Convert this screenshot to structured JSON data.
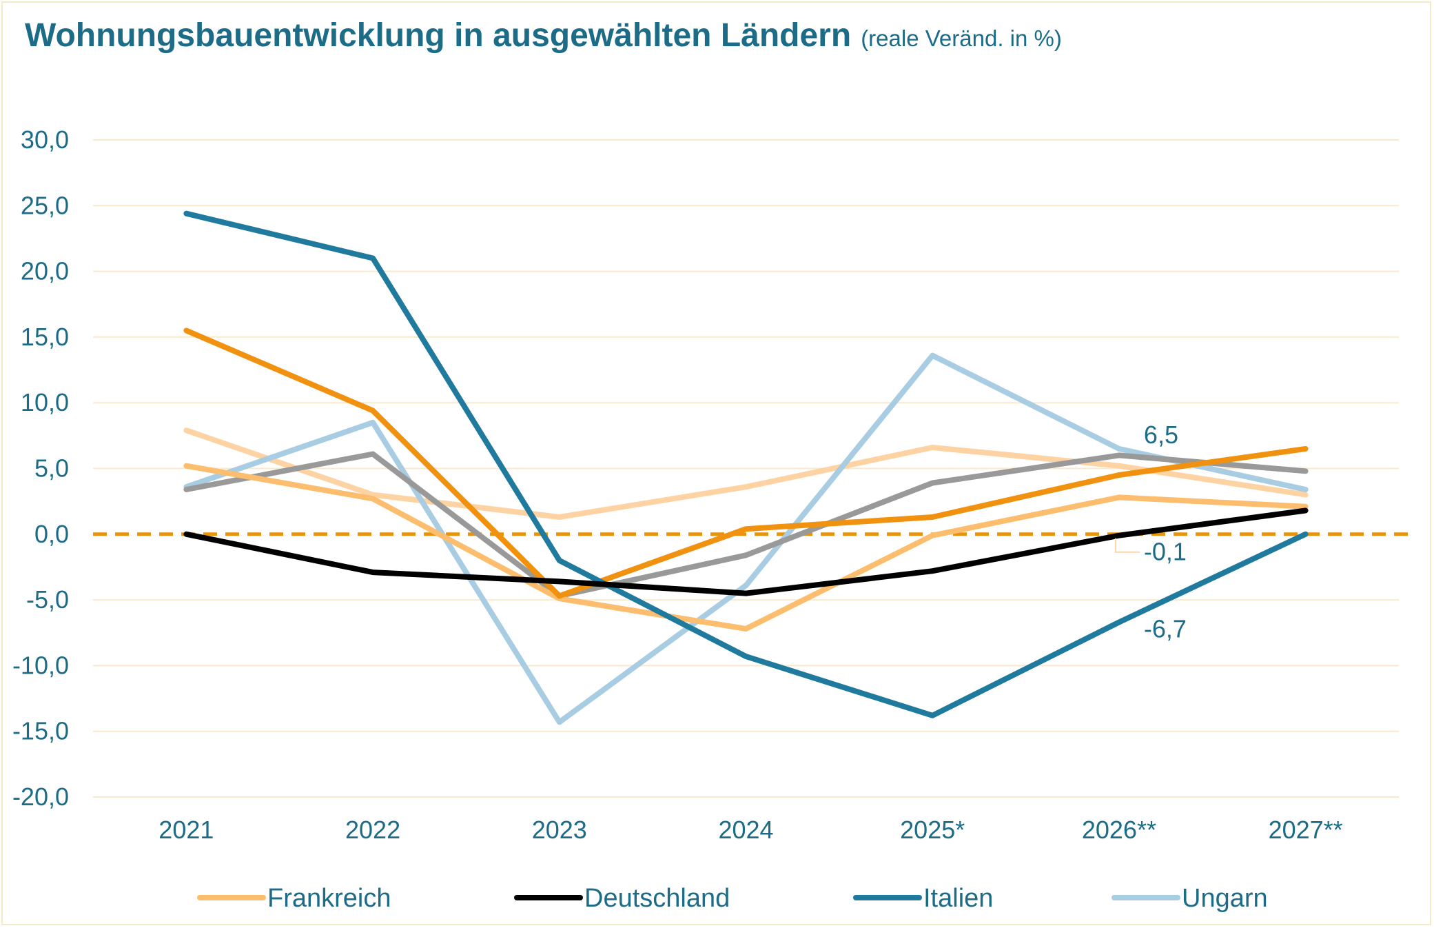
{
  "title": "Wohnungsbauentwicklung in ausgewählten Ländern",
  "subtitle": "(reale Veränd. in %)",
  "chart_data": {
    "type": "line",
    "categories": [
      "2021",
      "2022",
      "2023",
      "2024",
      "2025*",
      "2026**",
      "2027**"
    ],
    "ylim": [
      -20,
      30
    ],
    "yticks": [
      "30,0",
      "25,0",
      "20,0",
      "15,0",
      "10,0",
      "5,0",
      "0,0",
      "-5,0",
      "-10,0",
      "-15,0",
      "-20,0"
    ],
    "ytick_values": [
      30,
      25,
      20,
      15,
      10,
      5,
      0,
      -5,
      -10,
      -15,
      -20
    ],
    "grid": true,
    "zero_line": {
      "value": 0,
      "color": "#e8930c",
      "style": "dashed"
    },
    "legend_position": "bottom",
    "series": [
      {
        "name": "",
        "color": "#fdd3a3",
        "values": [
          7.9,
          3.0,
          1.3,
          3.6,
          6.6,
          5.2,
          3.0
        ],
        "legend": false
      },
      {
        "name": "Ungarn",
        "color": "#a8cde2",
        "values": [
          3.6,
          8.5,
          -14.3,
          -3.9,
          13.6,
          6.5,
          3.4
        ],
        "legend": true
      },
      {
        "name": "",
        "color": "#999999",
        "values": [
          3.4,
          6.1,
          -4.7,
          -1.6,
          3.9,
          6.0,
          4.8
        ],
        "legend": false
      },
      {
        "name": "Frankreich",
        "color": "#fcbd6e",
        "values": [
          5.2,
          2.7,
          -4.9,
          -7.2,
          -0.1,
          2.8,
          2.1
        ],
        "legend": true
      },
      {
        "name": "",
        "color": "#f0920f",
        "values": [
          15.5,
          9.4,
          -4.7,
          0.4,
          1.3,
          4.5,
          6.5
        ],
        "legend": false
      },
      {
        "name": "Italien",
        "color": "#1f7a9e",
        "values": [
          24.4,
          21.0,
          -2.0,
          -9.3,
          -13.8,
          -6.7,
          0.0
        ],
        "legend": true
      },
      {
        "name": "Deutschland",
        "color": "#000000",
        "values": [
          0.0,
          -2.9,
          -3.6,
          -4.5,
          -2.8,
          -0.1,
          1.8
        ],
        "legend": true
      }
    ],
    "legend_order": [
      "Frankreich",
      "Deutschland",
      "Italien",
      "Ungarn"
    ],
    "data_labels": [
      {
        "text": "6,5",
        "series": "Ungarn",
        "category": "2026**"
      },
      {
        "text": "-0,1",
        "series": "Deutschland",
        "category": "2026**"
      },
      {
        "text": "-6,7",
        "series": "Italien",
        "category": "2026**"
      }
    ]
  }
}
